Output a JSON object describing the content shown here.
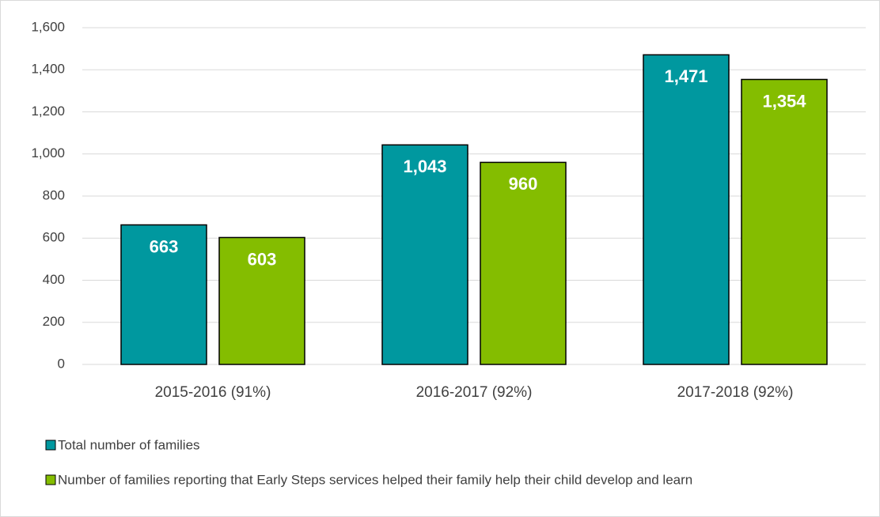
{
  "chart_data": {
    "type": "bar",
    "categories": [
      "2015-2016 (91%)",
      "2016-2017 (92%)",
      "2017-2018 (92%)"
    ],
    "series": [
      {
        "name": "Total number of families",
        "color": "#00989f",
        "values": [
          663,
          1043,
          1471
        ],
        "value_labels": [
          "663",
          "1,043",
          "1,471"
        ]
      },
      {
        "name": "Number of families reporting that Early Steps services helped their family help their child develop and learn",
        "color": "#84bd00",
        "values": [
          603,
          960,
          1354
        ],
        "value_labels": [
          "603",
          "960",
          "1,354"
        ]
      }
    ],
    "ylim": [
      0,
      1600
    ],
    "yticks": [
      0,
      200,
      400,
      600,
      800,
      {
        "value": 1000,
        "label": "1,000"
      },
      {
        "value": 1200,
        "label": "1,200"
      },
      {
        "value": 1400,
        "label": "1,400"
      },
      {
        "value": 1600,
        "label": "1,600"
      }
    ],
    "grid": true,
    "legend": "bottom"
  }
}
